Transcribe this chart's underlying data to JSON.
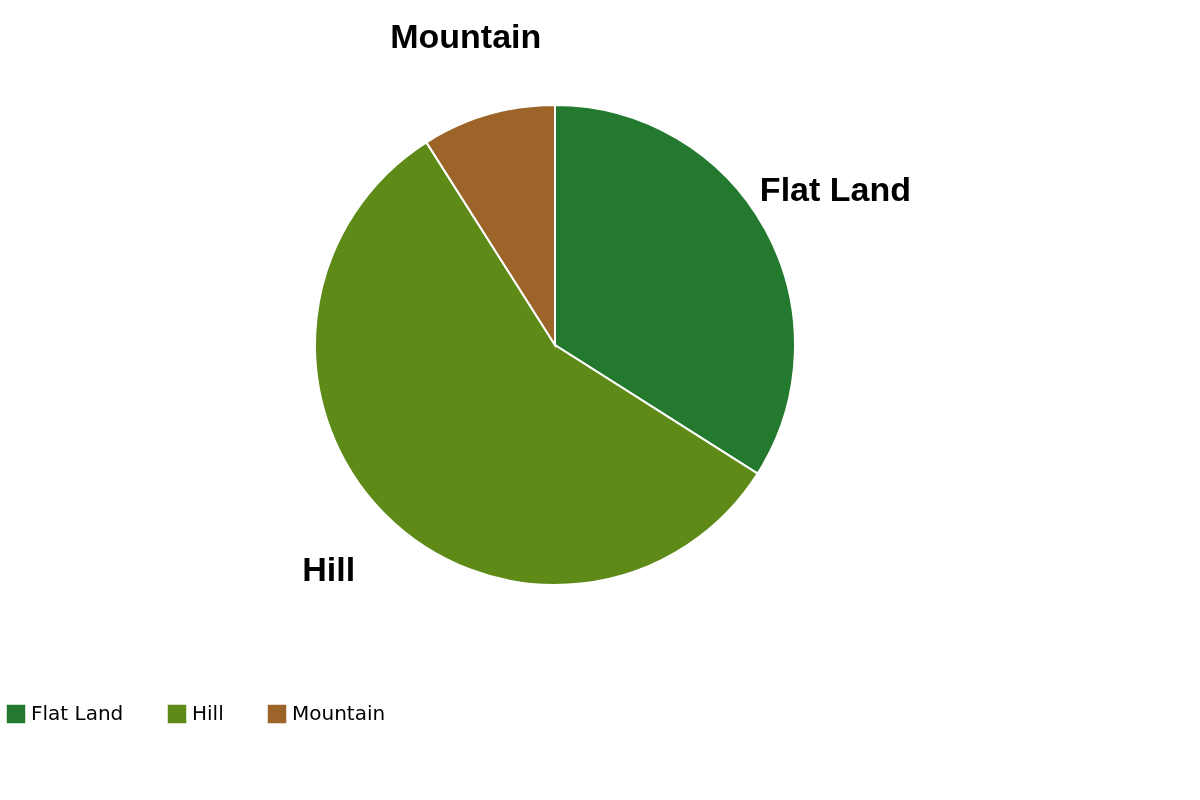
{
  "chart_data": {
    "type": "pie",
    "categories": [
      "Flat Land",
      "Hill",
      "Mountain"
    ],
    "values": [
      34,
      57,
      9
    ],
    "colors": [
      "#237a2f",
      "#5e8a18",
      "#9c6428"
    ],
    "legend": "bottom"
  }
}
